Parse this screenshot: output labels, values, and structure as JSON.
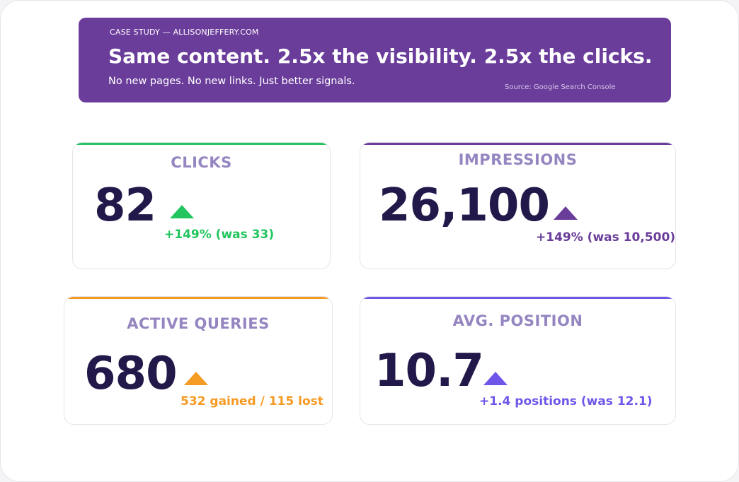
{
  "banner": {
    "kicker": "CASE STUDY — ALLISONJEFFERY.COM",
    "headline": "Same content. 2.5x the visibility. 2.5x the clicks.",
    "subheadline": "No new pages. No new links. Just better signals.",
    "source": "Source: Google Search Console",
    "color": "#6a3d9a"
  },
  "cards": {
    "clicks": {
      "label": "CLICKS",
      "value": "82",
      "delta": "+149% (was 33)",
      "accent": "#22c55e",
      "trend_icon": "triangle-up-icon"
    },
    "impressions": {
      "label": "IMPRESSIONS",
      "value": "26,100",
      "delta": "+149% (was 10,500)",
      "accent": "#6a3d9a",
      "trend_icon": "triangle-up-icon"
    },
    "active_queries": {
      "label": "ACTIVE QUERIES",
      "value": "680",
      "delta": "532 gained / 115 lost",
      "accent": "#f59a23",
      "trend_icon": "triangle-up-icon"
    },
    "avg_position": {
      "label": "AVG. POSITION",
      "value": "10.7",
      "delta": "+1.4 positions (was 12.1)",
      "accent": "#6f56e8",
      "trend_icon": "triangle-up-icon"
    }
  },
  "colors": {
    "label": "#9585c0",
    "value": "#22194a"
  }
}
